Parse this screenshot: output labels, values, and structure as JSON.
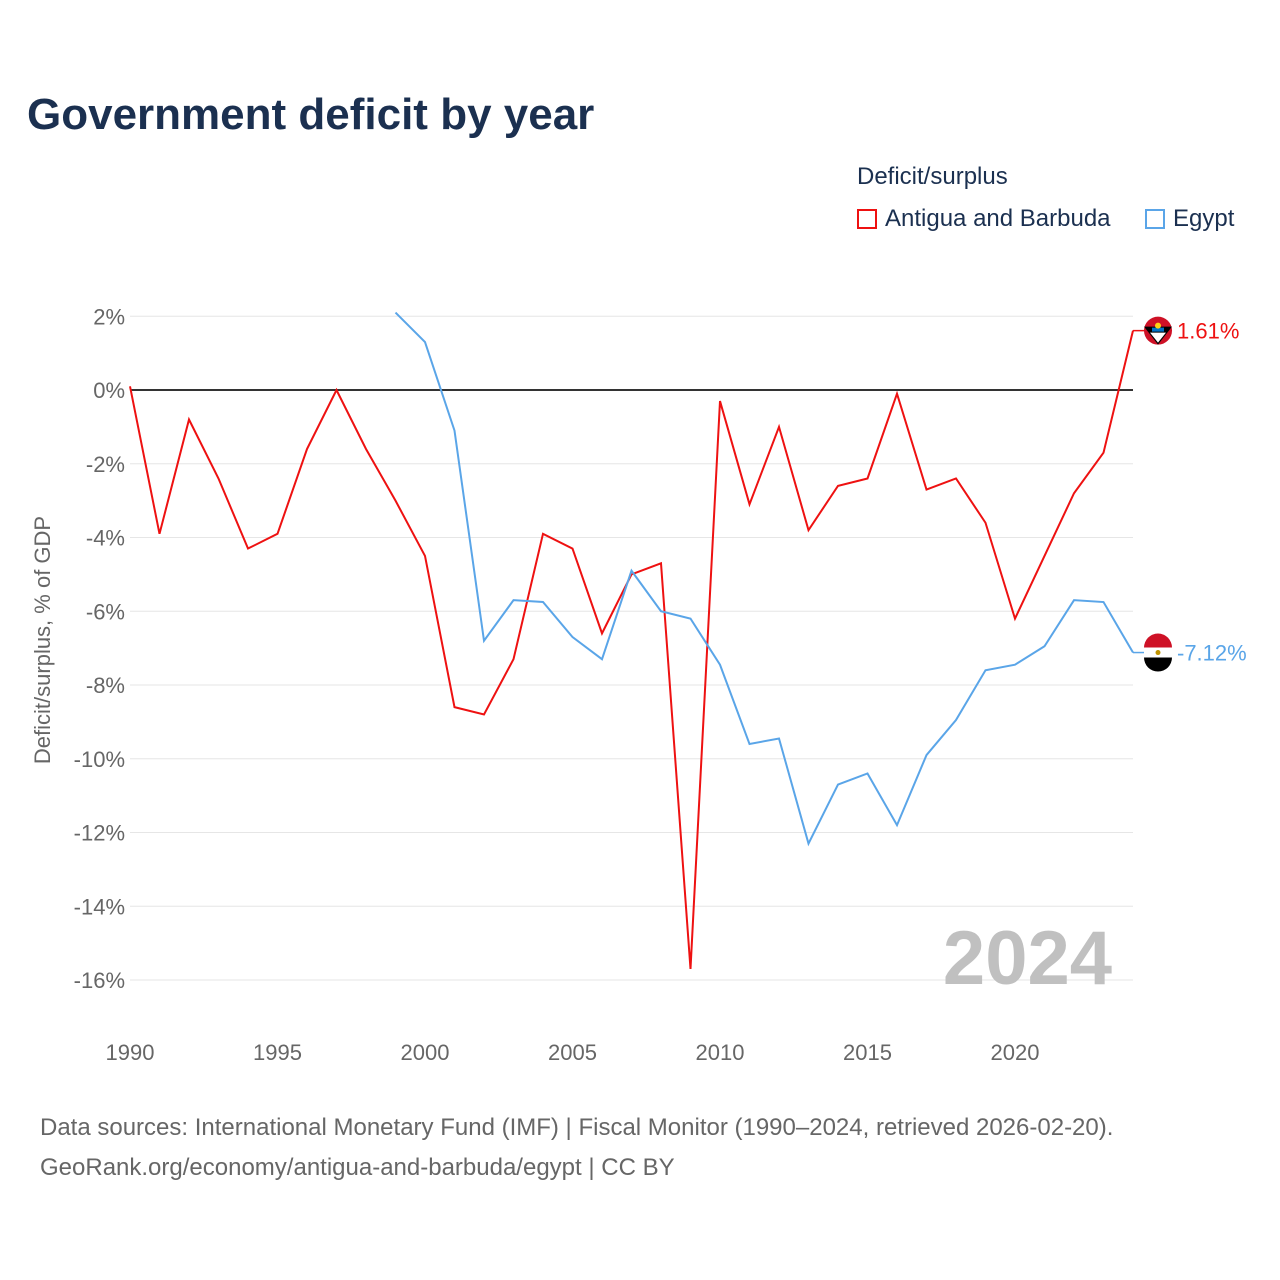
{
  "title": "Government deficit by year",
  "legend": {
    "title": "Deficit/surplus",
    "items": [
      {
        "label": "Antigua and Barbuda",
        "color": "#ee1111"
      },
      {
        "label": "Egypt",
        "color": "#5aa5e8"
      }
    ]
  },
  "source": {
    "line1": "Data sources: International Monetary Fund (IMF) | Fiscal Monitor (1990–2024, retrieved 2026-02-20).",
    "line2": "GeoRank.org/economy/antigua-and-barbuda/egypt | CC BY"
  },
  "chart_data": {
    "type": "line",
    "title": "Government deficit by year",
    "xlabel": "",
    "ylabel": "Deficit/surplus, % of GDP",
    "xlim": [
      1990,
      2024
    ],
    "ylim": [
      -17,
      2.5
    ],
    "x_ticks": [
      1990,
      1995,
      2000,
      2005,
      2010,
      2015,
      2020
    ],
    "y_ticks": [
      2,
      0,
      -2,
      -4,
      -6,
      -8,
      -10,
      -12,
      -14,
      -16
    ],
    "y_tick_labels": [
      "2%",
      "0%",
      "-2%",
      "-4%",
      "-6%",
      "-8%",
      "-10%",
      "-12%",
      "-14%",
      "-16%"
    ],
    "watermark": "2024",
    "series": [
      {
        "name": "Antigua and Barbuda",
        "color": "#ee1111",
        "end_label": "1.61%",
        "x": [
          1990,
          1991,
          1992,
          1993,
          1994,
          1995,
          1996,
          1997,
          1998,
          1999,
          2000,
          2001,
          2002,
          2003,
          2004,
          2005,
          2006,
          2007,
          2008,
          2009,
          2010,
          2011,
          2012,
          2013,
          2014,
          2015,
          2016,
          2017,
          2018,
          2019,
          2020,
          2021,
          2022,
          2023,
          2024
        ],
        "values": [
          0.1,
          -3.9,
          -0.8,
          -2.4,
          -4.3,
          -3.9,
          -1.6,
          0.0,
          -1.6,
          -3.0,
          -4.5,
          -8.6,
          -8.8,
          -7.3,
          -3.9,
          -4.3,
          -6.6,
          -5.0,
          -4.7,
          -15.7,
          -0.3,
          -3.1,
          -1.0,
          -3.8,
          -2.6,
          -2.4,
          -0.1,
          -2.7,
          -2.4,
          -3.6,
          -6.2,
          -4.5,
          -2.8,
          -1.7,
          1.61
        ]
      },
      {
        "name": "Egypt",
        "color": "#5aa5e8",
        "end_label": "-7.12%",
        "x": [
          1999,
          2000,
          2001,
          2002,
          2003,
          2004,
          2005,
          2006,
          2007,
          2008,
          2009,
          2010,
          2011,
          2012,
          2013,
          2014,
          2015,
          2016,
          2017,
          2018,
          2019,
          2020,
          2021,
          2022,
          2023,
          2024
        ],
        "values": [
          2.1,
          1.3,
          -1.1,
          -6.8,
          -5.7,
          -5.75,
          -6.7,
          -7.3,
          -4.9,
          -6.0,
          -6.2,
          -7.45,
          -9.6,
          -9.45,
          -12.3,
          -10.7,
          -10.4,
          -11.8,
          -9.9,
          -8.95,
          -7.6,
          -7.45,
          -6.95,
          -5.7,
          -5.75,
          -7.12
        ]
      }
    ]
  }
}
